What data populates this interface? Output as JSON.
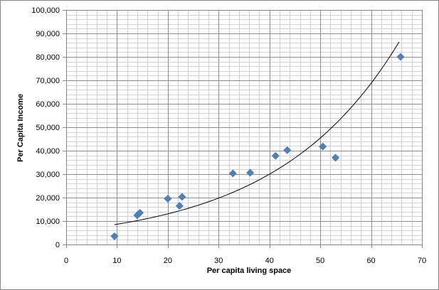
{
  "chart_data": {
    "type": "scatter",
    "title": "",
    "xlabel": "Per capita living space",
    "ylabel": "Per Capita Income",
    "xlim": [
      0,
      70
    ],
    "ylim": [
      0,
      100000
    ],
    "x_major_step": 10,
    "x_minor_step": 2,
    "y_major_step": 10000,
    "y_minor_step": 2000,
    "x_tick_labels": [
      "0",
      "10",
      "20",
      "30",
      "40",
      "50",
      "60",
      "70"
    ],
    "y_tick_labels": [
      "0",
      "10,000",
      "20,000",
      "30,000",
      "40,000",
      "50,000",
      "60,000",
      "70,000",
      "80,000",
      "90,000",
      "100,000"
    ],
    "grid": true,
    "legend": "none",
    "marker_color": "#4f81bd",
    "trendline_color": "#000000",
    "series": [
      {
        "marker": "diamond",
        "x": [
          9.5,
          14,
          14.5,
          20,
          22.3,
          22.8,
          32.8,
          36.2,
          41.2,
          43.5,
          50.5,
          53,
          65.8
        ],
        "y": [
          3500,
          12500,
          13500,
          19500,
          16500,
          20300,
          30300,
          30600,
          37800,
          40200,
          41800,
          37000,
          80000
        ]
      }
    ],
    "trendline": {
      "type": "exponential",
      "a": 5700,
      "b": 0.0415,
      "x_range": [
        9.5,
        65.5
      ]
    }
  }
}
